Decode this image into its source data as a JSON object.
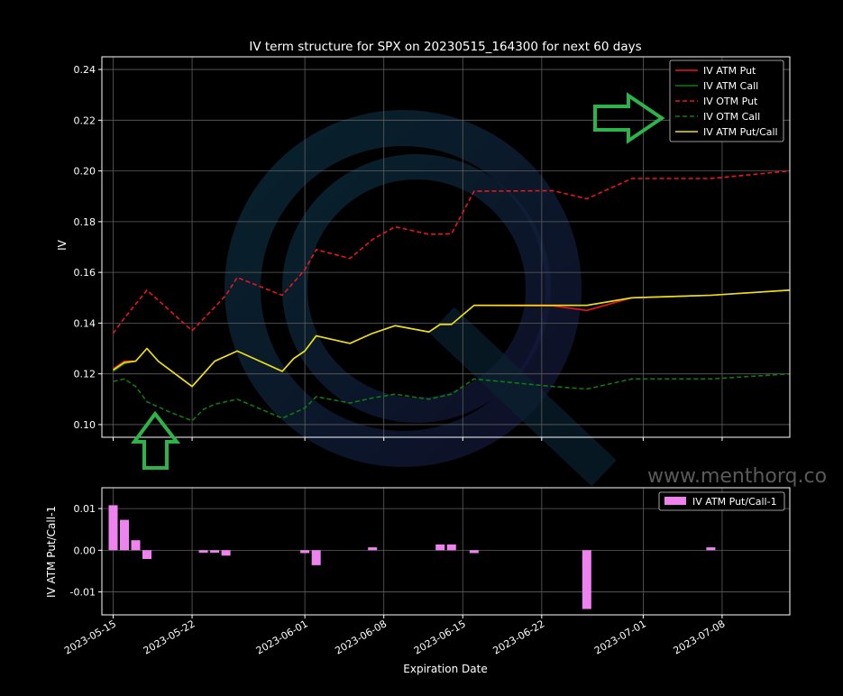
{
  "chart_data": [
    {
      "type": "line",
      "title": "IV term structure for SPX on 20230515_164300 for next 60 days",
      "ylabel": "IV",
      "ylim": [
        0.095,
        0.245
      ],
      "yticks": [
        0.1,
        0.12,
        0.14,
        0.16,
        0.18,
        0.2,
        0.22,
        0.24
      ],
      "grid": true,
      "legend_position": "top-right",
      "series": [
        {
          "name": "IV ATM Put",
          "color": "#e8161b",
          "style": "solid",
          "points": [
            [
              "2023-05-15",
              0.122
            ],
            [
              "2023-05-16",
              0.125
            ],
            [
              "2023-05-17",
              0.125
            ],
            [
              "2023-05-18",
              0.13
            ],
            [
              "2023-05-19",
              0.125
            ],
            [
              "2023-05-22",
              0.115
            ],
            [
              "2023-05-23",
              0.12
            ],
            [
              "2023-05-24",
              0.125
            ],
            [
              "2023-05-25",
              0.127
            ],
            [
              "2023-05-26",
              0.129
            ],
            [
              "2023-05-30",
              0.121
            ],
            [
              "2023-05-31",
              0.126
            ],
            [
              "2023-06-01",
              0.129
            ],
            [
              "2023-06-02",
              0.135
            ],
            [
              "2023-06-05",
              0.132
            ],
            [
              "2023-06-07",
              0.136
            ],
            [
              "2023-06-09",
              0.139
            ],
            [
              "2023-06-12",
              0.1365
            ],
            [
              "2023-06-13",
              0.1395
            ],
            [
              "2023-06-14",
              0.1395
            ],
            [
              "2023-06-16",
              0.147
            ],
            [
              "2023-06-23",
              0.1468
            ],
            [
              "2023-06-26",
              0.145
            ],
            [
              "2023-06-30",
              0.15
            ],
            [
              "2023-07-07",
              0.151
            ],
            [
              "2023-07-14",
              0.153
            ]
          ]
        },
        {
          "name": "IV ATM Call",
          "color": "#0f7a0f",
          "style": "solid",
          "points": [
            [
              "2023-05-15",
              0.121
            ],
            [
              "2023-05-16",
              0.124
            ],
            [
              "2023-05-17",
              0.125
            ],
            [
              "2023-05-18",
              0.13
            ],
            [
              "2023-05-19",
              0.125
            ],
            [
              "2023-05-22",
              0.115
            ],
            [
              "2023-05-23",
              0.12
            ],
            [
              "2023-05-24",
              0.125
            ],
            [
              "2023-05-25",
              0.127
            ],
            [
              "2023-05-26",
              0.129
            ],
            [
              "2023-05-30",
              0.121
            ],
            [
              "2023-05-31",
              0.126
            ],
            [
              "2023-06-01",
              0.129
            ],
            [
              "2023-06-02",
              0.135
            ],
            [
              "2023-06-05",
              0.132
            ],
            [
              "2023-06-07",
              0.136
            ],
            [
              "2023-06-09",
              0.139
            ],
            [
              "2023-06-12",
              0.1365
            ],
            [
              "2023-06-13",
              0.1395
            ],
            [
              "2023-06-14",
              0.1395
            ],
            [
              "2023-06-16",
              0.147
            ],
            [
              "2023-06-23",
              0.147
            ],
            [
              "2023-06-26",
              0.147
            ],
            [
              "2023-06-30",
              0.15
            ],
            [
              "2023-07-07",
              0.151
            ],
            [
              "2023-07-14",
              0.153
            ]
          ]
        },
        {
          "name": "IV OTM Put",
          "color": "#e8161b",
          "style": "dashed",
          "points": [
            [
              "2023-05-15",
              0.136
            ],
            [
              "2023-05-16",
              0.142
            ],
            [
              "2023-05-18",
              0.153
            ],
            [
              "2023-05-22",
              0.137
            ],
            [
              "2023-05-25",
              0.151
            ],
            [
              "2023-05-26",
              0.158
            ],
            [
              "2023-05-30",
              0.151
            ],
            [
              "2023-05-31",
              0.156
            ],
            [
              "2023-06-01",
              0.161
            ],
            [
              "2023-06-02",
              0.169
            ],
            [
              "2023-06-05",
              0.1655
            ],
            [
              "2023-06-07",
              0.173
            ],
            [
              "2023-06-09",
              0.178
            ],
            [
              "2023-06-12",
              0.175
            ],
            [
              "2023-06-14",
              0.1752
            ],
            [
              "2023-06-16",
              0.192
            ],
            [
              "2023-06-23",
              0.1922
            ],
            [
              "2023-06-26",
              0.189
            ],
            [
              "2023-06-30",
              0.197
            ],
            [
              "2023-07-07",
              0.197
            ],
            [
              "2023-07-14",
              0.2
            ]
          ]
        },
        {
          "name": "IV OTM Call",
          "color": "#0f7a0f",
          "style": "dashed",
          "points": [
            [
              "2023-05-15",
              0.117
            ],
            [
              "2023-05-16",
              0.118
            ],
            [
              "2023-05-17",
              0.115
            ],
            [
              "2023-05-18",
              0.109
            ],
            [
              "2023-05-20",
              0.105
            ],
            [
              "2023-05-22",
              0.1015
            ],
            [
              "2023-05-23",
              0.106
            ],
            [
              "2023-05-24",
              0.108
            ],
            [
              "2023-05-26",
              0.11
            ],
            [
              "2023-05-30",
              0.1025
            ],
            [
              "2023-06-01",
              0.1065
            ],
            [
              "2023-06-02",
              0.111
            ],
            [
              "2023-06-05",
              0.1085
            ],
            [
              "2023-06-07",
              0.1105
            ],
            [
              "2023-06-09",
              0.112
            ],
            [
              "2023-06-12",
              0.11
            ],
            [
              "2023-06-14",
              0.112
            ],
            [
              "2023-06-16",
              0.118
            ],
            [
              "2023-06-23",
              0.115
            ],
            [
              "2023-06-26",
              0.114
            ],
            [
              "2023-06-30",
              0.118
            ],
            [
              "2023-07-07",
              0.118
            ],
            [
              "2023-07-14",
              0.12
            ]
          ]
        },
        {
          "name": "IV ATM Put/Call",
          "color": "#f0e015",
          "style": "solid",
          "points": [
            [
              "2023-05-15",
              0.1215
            ],
            [
              "2023-05-16",
              0.1245
            ],
            [
              "2023-05-17",
              0.125
            ],
            [
              "2023-05-18",
              0.13
            ],
            [
              "2023-05-19",
              0.125
            ],
            [
              "2023-05-22",
              0.115
            ],
            [
              "2023-05-23",
              0.12
            ],
            [
              "2023-05-24",
              0.125
            ],
            [
              "2023-05-25",
              0.127
            ],
            [
              "2023-05-26",
              0.129
            ],
            [
              "2023-05-30",
              0.121
            ],
            [
              "2023-05-31",
              0.126
            ],
            [
              "2023-06-01",
              0.129
            ],
            [
              "2023-06-02",
              0.135
            ],
            [
              "2023-06-05",
              0.132
            ],
            [
              "2023-06-07",
              0.136
            ],
            [
              "2023-06-09",
              0.139
            ],
            [
              "2023-06-12",
              0.1365
            ],
            [
              "2023-06-13",
              0.1395
            ],
            [
              "2023-06-14",
              0.1395
            ],
            [
              "2023-06-16",
              0.147
            ],
            [
              "2023-06-23",
              0.147
            ],
            [
              "2023-06-26",
              0.147
            ],
            [
              "2023-06-30",
              0.15
            ],
            [
              "2023-07-07",
              0.151
            ],
            [
              "2023-07-14",
              0.153
            ]
          ]
        }
      ]
    },
    {
      "type": "bar",
      "xlabel": "Expiration Date",
      "ylabel": "IV ATM Put/Call-1",
      "ylim": [
        -0.0155,
        0.015
      ],
      "yticks": [
        -0.01,
        0.0,
        0.01
      ],
      "grid": true,
      "legend_position": "top-right",
      "series": [
        {
          "name": "IV ATM Put/Call-1",
          "color": "#ee82ee",
          "points": [
            [
              "2023-05-15",
              0.0108
            ],
            [
              "2023-05-16",
              0.0073
            ],
            [
              "2023-05-17",
              0.0024
            ],
            [
              "2023-05-18",
              -0.0021
            ],
            [
              "2023-05-23",
              -0.0006
            ],
            [
              "2023-05-24",
              -0.0006
            ],
            [
              "2023-05-25",
              -0.0013
            ],
            [
              "2023-06-01",
              -0.0007
            ],
            [
              "2023-06-02",
              -0.0036
            ],
            [
              "2023-06-07",
              0.0007
            ],
            [
              "2023-06-13",
              0.0014
            ],
            [
              "2023-06-14",
              0.0014
            ],
            [
              "2023-06-16",
              -0.0007
            ],
            [
              "2023-06-26",
              -0.0141
            ],
            [
              "2023-07-07",
              0.0007
            ]
          ]
        }
      ]
    }
  ],
  "x_axis": {
    "start": "2023-05-14",
    "end": "2023-07-14",
    "tick_labels": [
      "2023-05-15",
      "2023-05-22",
      "2023-06-01",
      "2023-06-08",
      "2023-06-15",
      "2023-06-22",
      "2023-07-01",
      "2023-07-08"
    ]
  },
  "watermark": {
    "text": "www.menthorq.co"
  },
  "annotations": [
    {
      "name": "arrow-up-icon",
      "color": "#2db34a"
    },
    {
      "name": "arrow-right-icon",
      "color": "#2db34a"
    }
  ]
}
